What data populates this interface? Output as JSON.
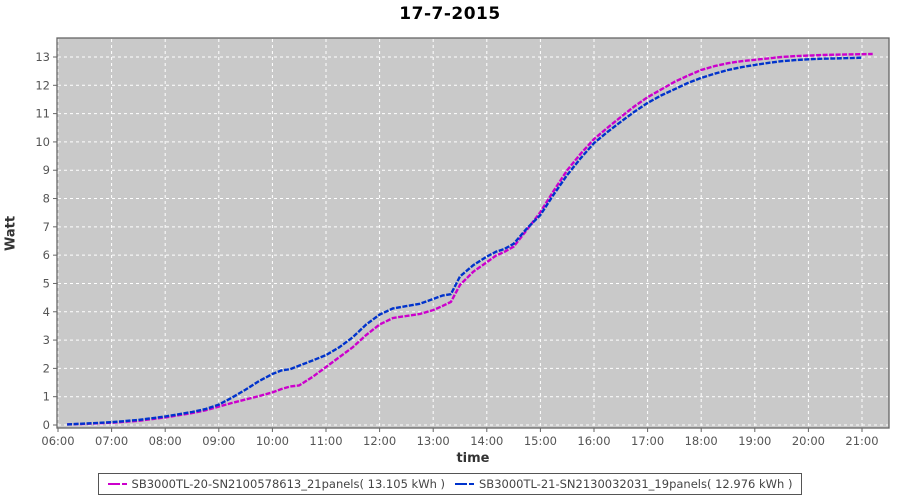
{
  "title": "17-7-2015",
  "axes": {
    "x_label": "time",
    "y_label": "Watt",
    "x_ticks": [
      "06:00",
      "07:00",
      "08:00",
      "09:00",
      "10:00",
      "11:00",
      "12:00",
      "13:00",
      "14:00",
      "15:00",
      "16:00",
      "17:00",
      "18:00",
      "19:00",
      "20:00",
      "21:00"
    ],
    "y_ticks": [
      "0",
      "1",
      "2",
      "3",
      "4",
      "5",
      "6",
      "7",
      "8",
      "9",
      "10",
      "11",
      "12",
      "13"
    ]
  },
  "colors": {
    "plot_bg": "#c9c9c9",
    "grid": "#ffffff",
    "plot_border": "#666666",
    "tick_text": "#555555",
    "series_magenta": "#cc00cc",
    "series_blue": "#0033cc"
  },
  "legend": {
    "items": [
      {
        "label": "SB3000TL-20-SN2100578613_21panels( 13.105 kWh )",
        "color": "#cc00cc"
      },
      {
        "label": "SB3000TL-21-SN2130032031_19panels( 12.976 kWh )",
        "color": "#0033cc"
      }
    ]
  },
  "chart_data": {
    "type": "line",
    "title": "17-7-2015",
    "xlabel": "time",
    "ylabel": "Watt",
    "x_unit": "hour-of-day",
    "x_range_hours": [
      6.0,
      21.5
    ],
    "ylim": [
      0,
      13.7
    ],
    "grid": true,
    "legend_position": "bottom",
    "x_tick_hours": [
      6,
      7,
      8,
      9,
      10,
      11,
      12,
      13,
      14,
      15,
      16,
      17,
      18,
      19,
      20,
      21
    ],
    "y_tick_values": [
      0,
      1,
      2,
      3,
      4,
      5,
      6,
      7,
      8,
      9,
      10,
      11,
      12,
      13
    ],
    "series": [
      {
        "name": "SB3000TL-20-SN2100578613_21panels( 13.105 kWh )",
        "color": "#cc00cc",
        "total_kwh": 13.105,
        "points": [
          [
            6.17,
            0.02
          ],
          [
            6.5,
            0.04
          ],
          [
            7.0,
            0.08
          ],
          [
            7.5,
            0.15
          ],
          [
            8.0,
            0.27
          ],
          [
            8.5,
            0.42
          ],
          [
            8.75,
            0.52
          ],
          [
            9.0,
            0.65
          ],
          [
            9.25,
            0.78
          ],
          [
            9.5,
            0.9
          ],
          [
            9.75,
            1.02
          ],
          [
            10.0,
            1.15
          ],
          [
            10.17,
            1.27
          ],
          [
            10.33,
            1.36
          ],
          [
            10.5,
            1.4
          ],
          [
            10.75,
            1.7
          ],
          [
            11.0,
            2.05
          ],
          [
            11.25,
            2.4
          ],
          [
            11.5,
            2.75
          ],
          [
            11.75,
            3.18
          ],
          [
            12.0,
            3.55
          ],
          [
            12.25,
            3.78
          ],
          [
            12.5,
            3.85
          ],
          [
            12.75,
            3.92
          ],
          [
            13.0,
            4.06
          ],
          [
            13.17,
            4.2
          ],
          [
            13.33,
            4.35
          ],
          [
            13.5,
            4.95
          ],
          [
            13.75,
            5.42
          ],
          [
            14.0,
            5.75
          ],
          [
            14.17,
            5.98
          ],
          [
            14.33,
            6.12
          ],
          [
            14.5,
            6.3
          ],
          [
            14.75,
            6.9
          ],
          [
            15.0,
            7.52
          ],
          [
            15.25,
            8.28
          ],
          [
            15.5,
            9.0
          ],
          [
            15.75,
            9.58
          ],
          [
            16.0,
            10.1
          ],
          [
            16.25,
            10.5
          ],
          [
            16.5,
            10.88
          ],
          [
            16.75,
            11.25
          ],
          [
            17.0,
            11.58
          ],
          [
            17.25,
            11.85
          ],
          [
            17.5,
            12.12
          ],
          [
            17.75,
            12.34
          ],
          [
            18.0,
            12.54
          ],
          [
            18.25,
            12.68
          ],
          [
            18.5,
            12.78
          ],
          [
            18.75,
            12.85
          ],
          [
            19.0,
            12.9
          ],
          [
            19.25,
            12.95
          ],
          [
            19.5,
            13.0
          ],
          [
            19.75,
            13.03
          ],
          [
            20.0,
            13.05
          ],
          [
            20.25,
            13.07
          ],
          [
            20.5,
            13.08
          ],
          [
            20.75,
            13.09
          ],
          [
            21.0,
            13.1
          ],
          [
            21.2,
            13.105
          ]
        ]
      },
      {
        "name": "SB3000TL-21-SN2130032031_19panels( 12.976 kWh )",
        "color": "#0033cc",
        "total_kwh": 12.976,
        "points": [
          [
            6.17,
            0.02
          ],
          [
            6.5,
            0.05
          ],
          [
            7.0,
            0.1
          ],
          [
            7.5,
            0.18
          ],
          [
            8.0,
            0.3
          ],
          [
            8.5,
            0.46
          ],
          [
            8.75,
            0.56
          ],
          [
            9.0,
            0.72
          ],
          [
            9.25,
            0.97
          ],
          [
            9.5,
            1.25
          ],
          [
            9.75,
            1.55
          ],
          [
            10.0,
            1.8
          ],
          [
            10.17,
            1.93
          ],
          [
            10.33,
            1.97
          ],
          [
            10.5,
            2.1
          ],
          [
            10.75,
            2.28
          ],
          [
            11.0,
            2.47
          ],
          [
            11.25,
            2.75
          ],
          [
            11.5,
            3.1
          ],
          [
            11.75,
            3.55
          ],
          [
            12.0,
            3.9
          ],
          [
            12.25,
            4.12
          ],
          [
            12.5,
            4.2
          ],
          [
            12.75,
            4.28
          ],
          [
            13.0,
            4.45
          ],
          [
            13.17,
            4.57
          ],
          [
            13.33,
            4.62
          ],
          [
            13.5,
            5.25
          ],
          [
            13.75,
            5.65
          ],
          [
            14.0,
            5.95
          ],
          [
            14.17,
            6.12
          ],
          [
            14.33,
            6.22
          ],
          [
            14.5,
            6.4
          ],
          [
            14.75,
            6.95
          ],
          [
            15.0,
            7.42
          ],
          [
            15.25,
            8.15
          ],
          [
            15.5,
            8.83
          ],
          [
            15.75,
            9.42
          ],
          [
            16.0,
            9.96
          ],
          [
            16.25,
            10.35
          ],
          [
            16.5,
            10.71
          ],
          [
            16.75,
            11.06
          ],
          [
            17.0,
            11.38
          ],
          [
            17.25,
            11.64
          ],
          [
            17.5,
            11.86
          ],
          [
            17.75,
            12.08
          ],
          [
            18.0,
            12.26
          ],
          [
            18.25,
            12.41
          ],
          [
            18.5,
            12.54
          ],
          [
            18.75,
            12.64
          ],
          [
            19.0,
            12.72
          ],
          [
            19.25,
            12.79
          ],
          [
            19.5,
            12.85
          ],
          [
            19.75,
            12.89
          ],
          [
            20.0,
            12.92
          ],
          [
            20.25,
            12.94
          ],
          [
            20.5,
            12.95
          ],
          [
            20.75,
            12.96
          ],
          [
            21.0,
            12.976
          ]
        ]
      }
    ]
  }
}
